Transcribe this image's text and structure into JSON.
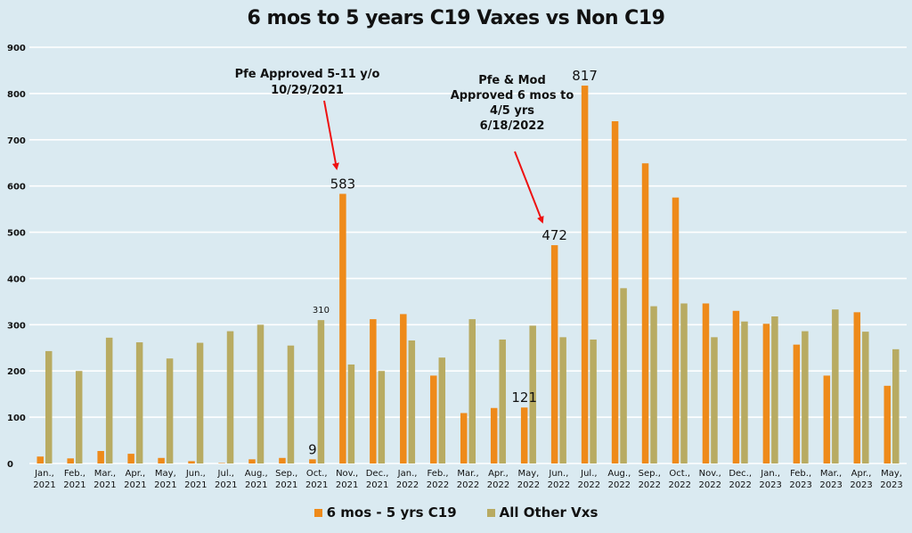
{
  "chart_data": {
    "type": "bar",
    "title": "6 mos to 5 years C19 Vaxes vs Non C19",
    "xlabel": "",
    "ylabel": "",
    "ylim": [
      0,
      900
    ],
    "yticks": [
      0,
      100,
      200,
      300,
      400,
      500,
      600,
      700,
      800,
      900
    ],
    "grid": true,
    "legend_position": "bottom",
    "categories": [
      [
        "Jan.,",
        "2021"
      ],
      [
        "Feb.,",
        "2021"
      ],
      [
        "Mar.,",
        "2021"
      ],
      [
        "Apr.,",
        "2021"
      ],
      [
        "May,",
        "2021"
      ],
      [
        "Jun.,",
        "2021"
      ],
      [
        "Jul.,",
        "2021"
      ],
      [
        "Aug.,",
        "2021"
      ],
      [
        "Sep.,",
        "2021"
      ],
      [
        "Oct.,",
        "2021"
      ],
      [
        "Nov.,",
        "2021"
      ],
      [
        "Dec.,",
        "2021"
      ],
      [
        "Jan.,",
        "2022"
      ],
      [
        "Feb.,",
        "2022"
      ],
      [
        "Mar.,",
        "2022"
      ],
      [
        "Apr.,",
        "2022"
      ],
      [
        "May,",
        "2022"
      ],
      [
        "Jun.,",
        "2022"
      ],
      [
        "Jul.,",
        "2022"
      ],
      [
        "Aug.,",
        "2022"
      ],
      [
        "Sep.,",
        "2022"
      ],
      [
        "Oct.,",
        "2022"
      ],
      [
        "Nov.,",
        "2022"
      ],
      [
        "Dec.,",
        "2022"
      ],
      [
        "Jan.,",
        "2023"
      ],
      [
        "Feb.,",
        "2023"
      ],
      [
        "Mar.,",
        "2023"
      ],
      [
        "Apr.,",
        "2023"
      ],
      [
        "May,",
        "2023"
      ]
    ],
    "series": [
      {
        "name": "6 mos - 5 yrs C19",
        "color": "#ee8a1a",
        "values": [
          15,
          11,
          27,
          21,
          12,
          5,
          1,
          9,
          12,
          9,
          583,
          312,
          323,
          190,
          109,
          120,
          121,
          472,
          817,
          740,
          649,
          575,
          346,
          330,
          302,
          257,
          190,
          327,
          168
        ]
      },
      {
        "name": "All Other Vxs",
        "color": "#b8ab62",
        "values": [
          243,
          200,
          272,
          262,
          227,
          261,
          286,
          300,
          255,
          310,
          214,
          200,
          266,
          229,
          312,
          268,
          298,
          273,
          268,
          379,
          340,
          346,
          273,
          307,
          318,
          286,
          333,
          285,
          247
        ]
      }
    ],
    "data_labels": [
      {
        "series": 0,
        "index": 9,
        "text": "9"
      },
      {
        "series": 1,
        "index": 9,
        "text": "310"
      },
      {
        "series": 0,
        "index": 10,
        "text": "583"
      },
      {
        "series": 0,
        "index": 16,
        "text": "121"
      },
      {
        "series": 0,
        "index": 17,
        "text": "472"
      },
      {
        "series": 0,
        "index": 18,
        "text": "817"
      }
    ],
    "annotations": [
      {
        "lines": [
          "Pfe Approved 5-11 y/o",
          "10/29/2021"
        ],
        "points_to_index": 10,
        "arrow_color": "#ee1111"
      },
      {
        "lines": [
          "Pfe & Mod",
          "Approved 6 mos to",
          "4/5 yrs",
          "6/18/2022"
        ],
        "points_to_index": 17,
        "arrow_color": "#ee1111"
      }
    ]
  }
}
